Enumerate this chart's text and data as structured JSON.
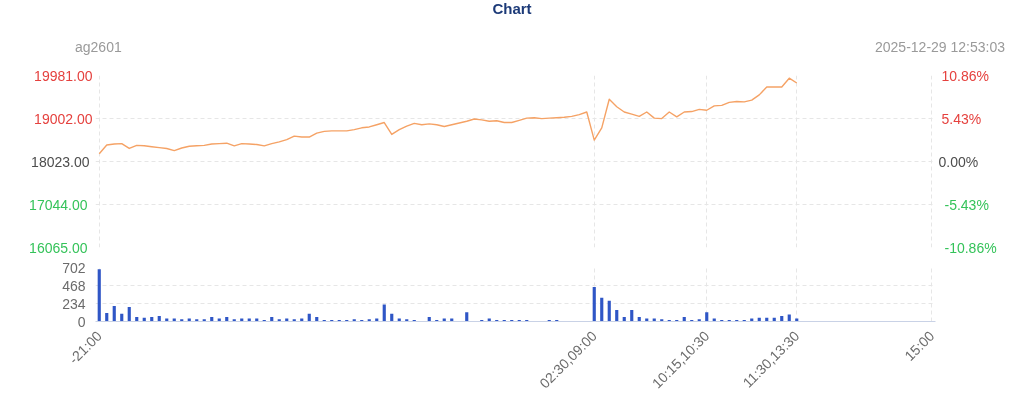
{
  "chart_data": [
    {
      "type": "line",
      "title": "Chart",
      "subtitle": "ag2601",
      "annotations": [
        "2025-12-29 12:53:03"
      ],
      "categories": [
        null,
        null,
        null,
        null,
        null,
        null,
        null,
        null,
        null,
        null,
        null,
        null,
        null,
        null,
        null,
        null,
        null,
        null,
        null,
        null,
        null,
        null,
        null,
        null,
        null,
        null,
        null,
        null,
        null,
        null,
        null,
        null,
        null,
        null,
        null,
        null,
        null,
        null,
        null,
        null,
        null,
        null,
        null,
        null,
        null,
        null,
        null,
        null,
        null,
        null,
        null,
        null,
        null,
        null,
        null,
        null,
        null,
        null,
        null,
        null,
        null,
        null,
        null,
        null,
        null,
        null,
        null,
        null,
        null,
        null,
        null,
        null,
        null,
        null,
        null,
        null,
        null,
        null,
        null,
        null,
        null,
        null,
        null,
        null,
        null,
        null,
        null,
        null,
        null,
        null,
        null,
        null,
        null,
        null,
        null,
        null,
        null,
        null,
        null,
        null,
        null,
        null,
        null,
        null,
        null,
        null,
        null,
        null,
        null,
        null,
        null,
        null
      ],
      "series": [
        {
          "color": "#f5a265",
          "values": [
            18200,
            18400,
            18420,
            18430,
            18320,
            18390,
            18380,
            18360,
            18340,
            18320,
            18270,
            18330,
            18370,
            18380,
            18390,
            18420,
            18430,
            18440,
            18380,
            18430,
            18420,
            18410,
            18380,
            18430,
            18470,
            18520,
            18600,
            18580,
            18580,
            18670,
            18710,
            18720,
            18720,
            18720,
            18750,
            18790,
            18810,
            18860,
            18910,
            18640,
            18750,
            18830,
            18890,
            18860,
            18880,
            18860,
            18820,
            18860,
            18900,
            18940,
            18990,
            18970,
            18940,
            18950,
            18910,
            18910,
            18960,
            19010,
            19020,
            19000,
            19010,
            19020,
            19030,
            19050,
            19090,
            19150,
            18510,
            18790,
            19440,
            19270,
            19150,
            19100,
            19050,
            19150,
            19010,
            19000,
            19150,
            19040,
            19150,
            19160,
            19210,
            19190,
            19290,
            19300,
            19370,
            19390,
            19380,
            19420,
            19540,
            19720,
            19720,
            19720,
            19920,
            19810,
            null,
            null,
            null,
            null,
            null,
            null,
            null,
            null,
            null,
            null,
            null,
            null,
            null,
            null,
            null,
            null,
            null,
            null
          ]
        }
      ],
      "ylim": [
        16065,
        19981
      ],
      "yticks": [
        {
          "value": 16065,
          "label": "16065.00"
        },
        {
          "value": 17044,
          "label": "17044.00"
        },
        {
          "value": 18023,
          "label": "18023.00"
        },
        {
          "value": 19002,
          "label": "19002.00"
        },
        {
          "value": 19981,
          "label": "19981.00"
        }
      ],
      "y2lim": [
        -10.86,
        10.86
      ],
      "y2ticks": [
        {
          "value": -10.86,
          "label": "-10.86%"
        },
        {
          "value": -5.43,
          "label": "-5.43%"
        },
        {
          "value": 0,
          "label": "0.00%"
        },
        {
          "value": 5.43,
          "label": "5.43%"
        },
        {
          "value": 10.86,
          "label": "10.86%"
        }
      ],
      "grid": true,
      "tick_labels": "y"
    },
    {
      "type": "bar",
      "color": "#2f56c6",
      "categories": [
        "-21:00",
        null,
        null,
        null,
        null,
        null,
        null,
        null,
        null,
        null,
        null,
        null,
        null,
        null,
        null,
        null,
        null,
        null,
        null,
        null,
        null,
        null,
        null,
        null,
        null,
        null,
        null,
        null,
        null,
        null,
        null,
        null,
        null,
        null,
        null,
        null,
        null,
        null,
        null,
        null,
        null,
        null,
        null,
        null,
        null,
        null,
        null,
        null,
        null,
        null,
        null,
        null,
        null,
        null,
        null,
        null,
        null,
        null,
        null,
        null,
        null,
        null,
        null,
        null,
        null,
        null,
        "02:30,09:00",
        null,
        null,
        null,
        null,
        null,
        null,
        null,
        null,
        null,
        null,
        null,
        null,
        null,
        null,
        "10:15,10:30",
        null,
        null,
        null,
        null,
        null,
        null,
        null,
        null,
        null,
        null,
        null,
        "11:30,13:30",
        null,
        null,
        null,
        null,
        null,
        null,
        null,
        null,
        null,
        null,
        null,
        null,
        null,
        null,
        null,
        null,
        null,
        "15:00"
      ],
      "values": [
        680,
        110,
        200,
        100,
        190,
        60,
        50,
        60,
        70,
        40,
        40,
        30,
        40,
        30,
        30,
        60,
        40,
        60,
        30,
        40,
        40,
        40,
        20,
        60,
        30,
        40,
        30,
        40,
        100,
        60,
        20,
        20,
        20,
        20,
        30,
        20,
        30,
        40,
        220,
        100,
        40,
        30,
        20,
        null,
        60,
        20,
        40,
        40,
        null,
        120,
        null,
        20,
        40,
        20,
        20,
        20,
        20,
        20,
        null,
        null,
        20,
        20,
        null,
        null,
        null,
        null,
        450,
        310,
        270,
        150,
        60,
        150,
        60,
        40,
        40,
        30,
        20,
        20,
        60,
        20,
        30,
        120,
        40,
        20,
        20,
        20,
        20,
        40,
        50,
        50,
        50,
        70,
        90,
        40,
        null,
        null,
        null,
        null,
        null,
        null,
        null,
        null,
        null,
        null,
        null,
        null,
        null,
        null,
        null,
        null,
        null,
        null
      ],
      "ylim": [
        0,
        702
      ],
      "yticks": [
        0,
        234,
        468,
        702
      ],
      "grid": true
    }
  ]
}
